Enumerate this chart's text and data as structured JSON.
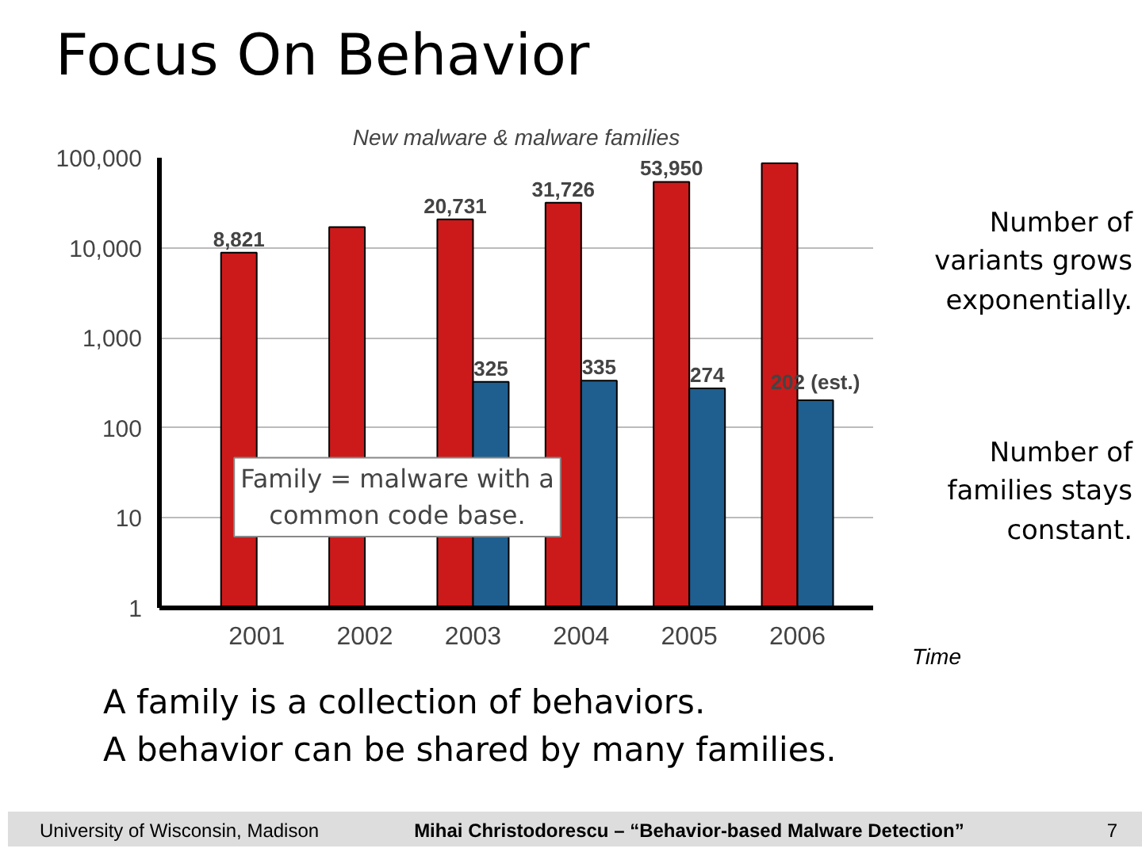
{
  "chart_data": {
    "type": "bar",
    "title": "Focus On Behavior",
    "subtitle": "New malware & malware families",
    "categories": [
      "2001",
      "2002",
      "2003",
      "2004",
      "2005",
      "2006"
    ],
    "series": [
      {
        "color": "#cc1a1a",
        "values": [
          8821,
          17000,
          20731,
          31726,
          53950,
          86800
        ],
        "value_labels": [
          "8,821",
          null,
          "20,731",
          "31,726",
          "53,950",
          null
        ]
      },
      {
        "color": "#1f5f8f",
        "values": [
          null,
          null,
          325,
          335,
          274,
          202
        ],
        "value_labels": [
          null,
          null,
          "325",
          "335",
          "274",
          "202 (est.)"
        ]
      }
    ],
    "log": true,
    "ylim": [
      1,
      100000
    ],
    "yticks": [
      {
        "value": 1,
        "label": "1"
      },
      {
        "value": 10,
        "label": "10"
      },
      {
        "value": 100,
        "label": "100"
      },
      {
        "value": 1000,
        "label": "1,000"
      },
      {
        "value": 10000,
        "label": "10,000"
      },
      {
        "value": 100000,
        "label": "100,000"
      }
    ],
    "grid": "y",
    "annotations": [
      "Family = malware with a common code base.",
      "Number of variants grows exponentially.",
      "Number of families stays constant.",
      "Time",
      "A family is a collection of behaviors.",
      "A behavior can be shared by many families.",
      "University of Wisconsin, Madison",
      "Mihai Christodorescu – “Behavior-based Malware Detection”",
      "7"
    ]
  }
}
